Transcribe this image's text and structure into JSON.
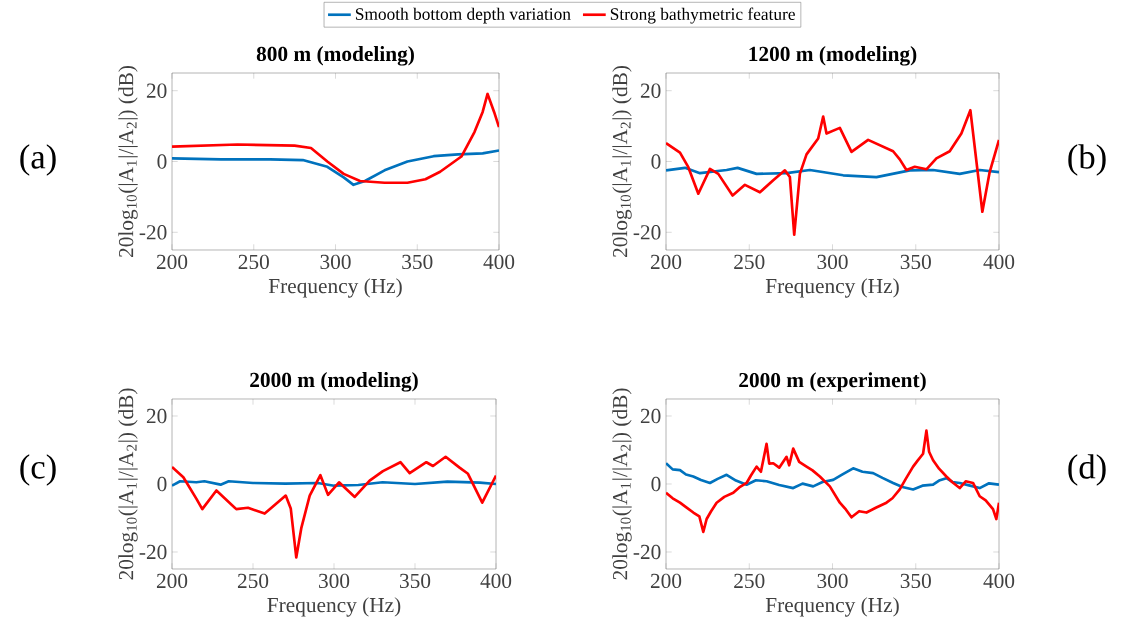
{
  "chart_data": [
    {
      "type": "line",
      "title": "800 m (modeling)",
      "xlabel": "Frequency (Hz)",
      "ylabel": "20log$_{10}$(|A$_{1}$|/|A$_{2}$|) (dB)",
      "annotations": [
        "(a)"
      ],
      "xlim": [
        200,
        400
      ],
      "ylim": [
        -25,
        25
      ],
      "xticks": [
        200,
        250,
        300,
        350,
        400
      ],
      "yticks": [
        -20,
        0,
        20
      ],
      "legend": "top",
      "series": [
        {
          "name": "Smooth bottom depth variation",
          "color": "#0072bd",
          "x": [
            200,
            230,
            260,
            280,
            295,
            305,
            311,
            318,
            330,
            344,
            360,
            375,
            390,
            400
          ],
          "values": [
            0.9,
            0.6,
            0.6,
            0.4,
            -1.5,
            -4.5,
            -6.6,
            -5.5,
            -2.5,
            0,
            1.5,
            2.0,
            2.3,
            3.1
          ]
        },
        {
          "name": "Strong bathymetric feature",
          "color": "#ff0000",
          "x": [
            200,
            240,
            275,
            285,
            295,
            305,
            315,
            330,
            344,
            355,
            364,
            377,
            385,
            390,
            393,
            397,
            400
          ],
          "values": [
            4.2,
            4.8,
            4.5,
            3.8,
            0,
            -3.5,
            -5.5,
            -6,
            -6,
            -5,
            -2.9,
            1.4,
            8.3,
            14,
            19.1,
            14,
            9.7
          ]
        }
      ]
    },
    {
      "type": "line",
      "title": "1200 m (modeling)",
      "xlabel": "Frequency (Hz)",
      "ylabel": "20log$_{10}$(|A$_{1}$|/|A$_{2}$|) (dB)",
      "annotations": [
        "(b)"
      ],
      "xlim": [
        200,
        400
      ],
      "ylim": [
        -25,
        25
      ],
      "xticks": [
        200,
        250,
        300,
        350,
        400
      ],
      "yticks": [
        -20,
        0,
        20
      ],
      "series": [
        {
          "color": "#0072bd",
          "x": [
            200,
            211.4,
            220.4,
            236.4,
            243,
            254.4,
            272.4,
            286.4,
            306.4,
            326.4,
            346.4,
            360.4,
            376.4,
            388.4,
            400
          ],
          "values": [
            -2.5,
            -1.8,
            -3.3,
            -2.4,
            -1.8,
            -3.5,
            -3.3,
            -2.4,
            -3.9,
            -4.4,
            -2.5,
            -2.4,
            -3.5,
            -2.4,
            -3
          ]
        },
        {
          "color": "#ff0000",
          "x": [
            200,
            208.4,
            213.4,
            219.4,
            226.4,
            231.4,
            240,
            247.4,
            256.4,
            264.4,
            271.4,
            274.4,
            277,
            280.4,
            284.4,
            291.4,
            294.4,
            296.4,
            304.4,
            311.4,
            321.4,
            336.4,
            340.4,
            344.4,
            349.4,
            356.4,
            362.4,
            370.4,
            377.4,
            382.8,
            390,
            394.4,
            400
          ],
          "values": [
            5.2,
            2.5,
            -1.6,
            -9.1,
            -2.1,
            -3.5,
            -9.6,
            -6.6,
            -8.7,
            -5.3,
            -2.5,
            -4.4,
            -20.7,
            -3.5,
            2,
            6.5,
            12.7,
            7.9,
            9.5,
            2.7,
            6.1,
            2.9,
            0.6,
            -2.4,
            -1.5,
            -2.2,
            0.9,
            2.9,
            7.9,
            14.5,
            -14.2,
            -3,
            6.1
          ]
        }
      ]
    },
    {
      "type": "line",
      "title": "2000 m (modeling)",
      "xlabel": "Frequency (Hz)",
      "ylabel": "20log$_{10}$(|A$_{1}$|/|A$_{2}$|) (dB)",
      "annotations": [
        "(c)"
      ],
      "xlim": [
        200,
        400
      ],
      "ylim": [
        -25,
        25
      ],
      "xticks": [
        200,
        250,
        300,
        350,
        400
      ],
      "yticks": [
        -20,
        0,
        20
      ],
      "series": [
        {
          "color": "#0072bd",
          "x": [
            200,
            205,
            215,
            220,
            230,
            235,
            250,
            270,
            290,
            300,
            315,
            330,
            350,
            370,
            390,
            400
          ],
          "values": [
            -0.5,
            0.8,
            0.5,
            0.8,
            -0.2,
            0.8,
            0.3,
            0.1,
            0.3,
            -0.5,
            -0.3,
            0.5,
            0,
            0.7,
            0.4,
            0
          ]
        },
        {
          "color": "#ff0000",
          "x": [
            200,
            207,
            215,
            218.7,
            227.4,
            239.7,
            246.9,
            257.2,
            270.2,
            273.3,
            276.7,
            279.8,
            285,
            291.6,
            296.3,
            303.1,
            312.8,
            322,
            330.2,
            341,
            346.7,
            357,
            361.1,
            368.9,
            377.5,
            382.7,
            391.5,
            400
          ],
          "values": [
            5,
            2,
            -4.3,
            -7.4,
            -1.9,
            -7.4,
            -7,
            -8.7,
            -3.4,
            -7.2,
            -21.6,
            -13,
            -3.4,
            2.6,
            -3.2,
            0.5,
            -3.8,
            1,
            3.8,
            6.4,
            3.2,
            6.4,
            5.3,
            8,
            4.8,
            3,
            -5.5,
            2.5
          ]
        }
      ]
    },
    {
      "type": "line",
      "title": "2000 m (experiment)",
      "xlabel": "Frequency (Hz)",
      "ylabel": "20log$_{10}$(|A$_{1}$|/|A$_{2}$|) (dB)",
      "annotations": [
        "(d)"
      ],
      "xlim": [
        200,
        400
      ],
      "ylim": [
        -25,
        25
      ],
      "xticks": [
        200,
        250,
        300,
        350,
        400
      ],
      "yticks": [
        -20,
        0,
        20
      ],
      "series": [
        {
          "color": "#0072bd",
          "x": [
            200,
            204,
            208.4,
            212,
            216.4,
            221,
            226.4,
            231,
            236.4,
            242,
            248.4,
            254,
            260.4,
            268,
            276.4,
            282,
            288.4,
            294,
            300.4,
            306,
            312.4,
            318,
            324.4,
            330,
            336.4,
            342,
            348.4,
            354,
            360.4,
            364,
            368.4,
            372,
            376.4,
            382,
            388.4,
            394,
            400
          ],
          "values": [
            6.1,
            4.3,
            4.1,
            2.8,
            2.2,
            1.2,
            0.3,
            1.5,
            2.7,
            1.0,
            -0.2,
            1.1,
            0.8,
            -0.3,
            -1.2,
            0.1,
            -0.7,
            0.6,
            1.2,
            2.8,
            4.6,
            3.6,
            3.2,
            1.8,
            0.3,
            -0.9,
            -1.6,
            -0.5,
            -0.2,
            1.0,
            1.7,
            0.6,
            0.3,
            -0.4,
            -1.2,
            0.2,
            -0.2
          ]
        },
        {
          "color": "#ff0000",
          "x": [
            200,
            204,
            208.4,
            212,
            216.4,
            220,
            222.4,
            224.4,
            227,
            230.4,
            235,
            240.4,
            244,
            248.4,
            251,
            254.4,
            257,
            260.4,
            262,
            264.4,
            268,
            272.4,
            274,
            276.4,
            280,
            284.4,
            288,
            292.4,
            298.4,
            304.4,
            308,
            311.4,
            316,
            320.4,
            326,
            332.4,
            336,
            340.4,
            344,
            348.4,
            351,
            354.4,
            356.4,
            358,
            360.4,
            364,
            368.4,
            372,
            376.4,
            380,
            384.4,
            388.4,
            392,
            396.4,
            398.4,
            400
          ],
          "values": [
            -2.6,
            -4.2,
            -5.5,
            -6.8,
            -8.4,
            -9.5,
            -14.1,
            -10.3,
            -8.1,
            -5.5,
            -3.8,
            -2.6,
            -1.0,
            0.3,
            2.5,
            5.1,
            3.6,
            11.8,
            6.0,
            6.1,
            4.8,
            8,
            5.5,
            10.4,
            6.5,
            5.1,
            4.0,
            2.2,
            -0.7,
            -5.5,
            -7.5,
            -9.8,
            -8.0,
            -8.4,
            -7.0,
            -5.5,
            -4.2,
            -1.6,
            1.5,
            5.1,
            6.8,
            8.9,
            15.7,
            9.5,
            7,
            4.5,
            2.2,
            0.5,
            -1.2,
            0.8,
            0.3,
            -3.6,
            -4.8,
            -7.4,
            -10.3,
            -5.5
          ]
        }
      ]
    }
  ]
}
